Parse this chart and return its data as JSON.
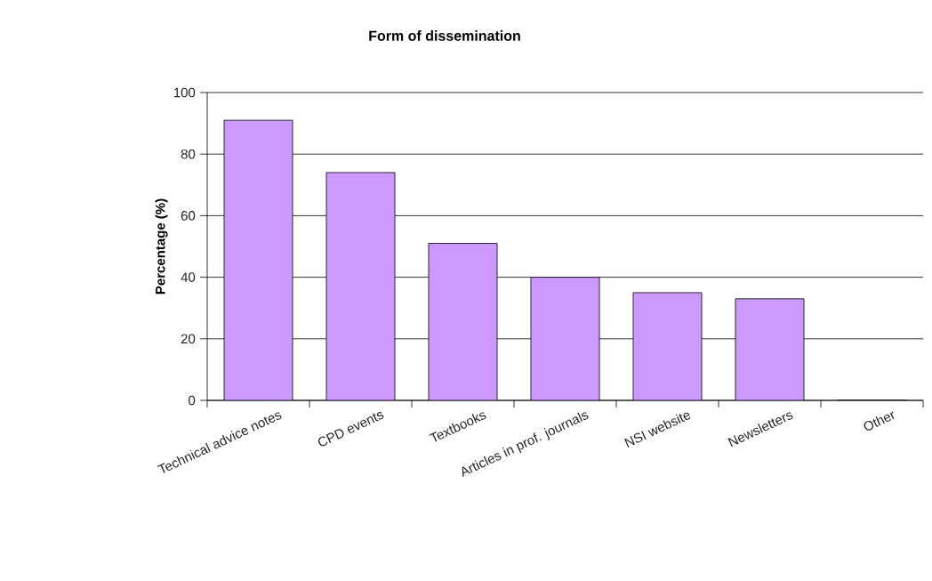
{
  "chart_data": {
    "type": "bar",
    "title": "Form of dissemination",
    "ylabel": "Percentage (%)",
    "categories": [
      "Technical advice notes",
      "CPD events",
      "Textbooks",
      "Articles in prof. journals",
      "NSI website",
      "Newsletters",
      "Other"
    ],
    "values": [
      91,
      74,
      51,
      40,
      35,
      33,
      0
    ],
    "color": "#cc99ff",
    "ylim": [
      0,
      100
    ],
    "yticks": [
      0,
      20,
      40,
      60,
      80,
      100
    ],
    "grid": "y"
  }
}
